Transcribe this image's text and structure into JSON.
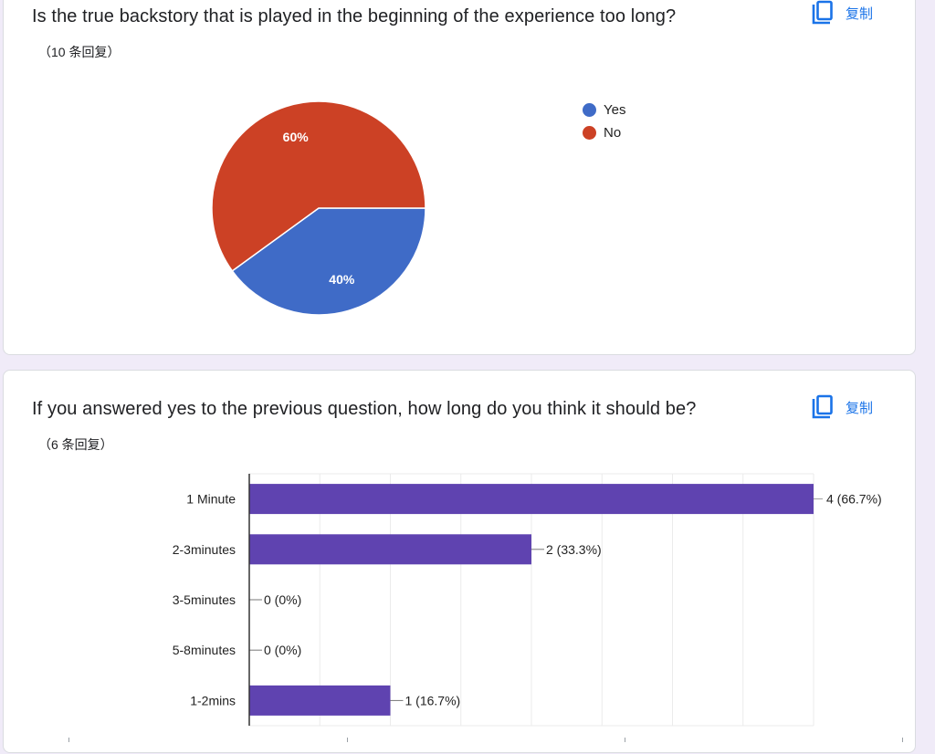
{
  "copy_icon": "copy-icon",
  "q1": {
    "title": "Is the true backstory that is played in the beginning of the experience too long?",
    "count": "（10 条回复）",
    "copy_label": "复制"
  },
  "q2": {
    "title": "If you answered yes to the previous question, how long do you think it should be?",
    "count": "（6 条回复）",
    "copy_label": "复制"
  },
  "chart_data": [
    {
      "type": "pie",
      "categories": [
        "Yes",
        "No"
      ],
      "values": [
        40,
        60
      ],
      "labels": [
        "40%",
        "60%"
      ],
      "colors": [
        "#3f6bc7",
        "#cc4125"
      ],
      "legend_position": "right-top"
    },
    {
      "type": "bar",
      "orientation": "horizontal",
      "categories": [
        "1 Minute",
        "2-3minutes",
        "3-5minutes",
        "5-8minutes",
        "1-2mins"
      ],
      "values": [
        4,
        2,
        0,
        0,
        1
      ],
      "labels": [
        "4 (66.7%)",
        "2 (33.3%)",
        "0 (0%)",
        "0 (0%)",
        "1 (16.7%)"
      ],
      "xlim": [
        0,
        4
      ],
      "grid": true,
      "color": "#5f43b0"
    }
  ]
}
